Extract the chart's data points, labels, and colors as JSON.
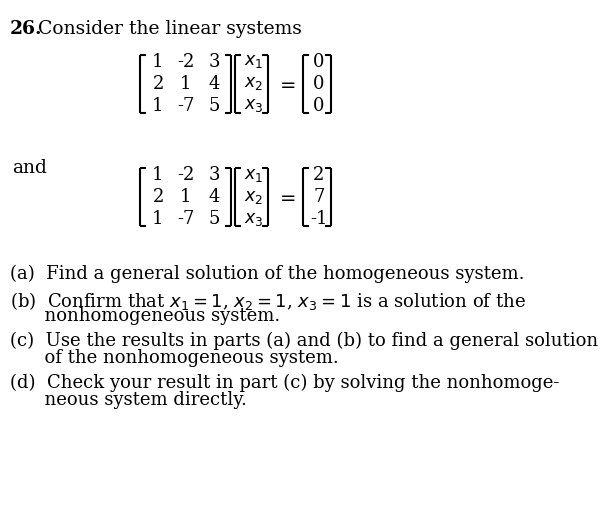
{
  "bg_color": "#ffffff",
  "text_color": "#000000",
  "title_bold": "26.",
  "title_rest": "  Consider the linear systems",
  "mat_rows": [
    [
      "1",
      "-2",
      "3"
    ],
    [
      "2",
      "1",
      "4"
    ],
    [
      "1",
      "-7",
      "5"
    ]
  ],
  "vec_x": [
    "x_1",
    "x_2",
    "x_3"
  ],
  "vec_b_hom": [
    "0",
    "0",
    "0"
  ],
  "vec_b_nonhom": [
    "2",
    "7",
    "-1"
  ],
  "and_label": "and",
  "part_a_line1": "(a)  Find a general solution of the homogeneous system.",
  "part_b_line1": "(b)  Confirm that $x_1 = 1$, $x_2 = 1$, $x_3 = 1$ is a solution of the",
  "part_b_line2": "      nonhomogeneous system.",
  "part_c_line1": "(c)  Use the results in parts (a) and (b) to find a general solution",
  "part_c_line2": "      of the nonhomogeneous system.",
  "part_d_line1": "(d)  Check your result in part (c) by solving the nonhomoge-",
  "part_d_line2": "      neous system directly.",
  "fs_main": 13.5,
  "fs_matrix": 13.0,
  "lw_bracket": 1.5
}
